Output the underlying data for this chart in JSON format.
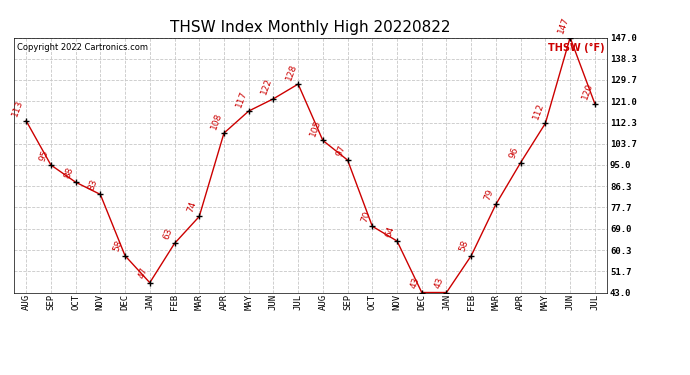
{
  "title": "THSW Index Monthly High 20220822",
  "copyright": "Copyright 2022 Cartronics.com",
  "legend_label": "THSW (°F)",
  "months": [
    "AUG",
    "SEP",
    "OCT",
    "NOV",
    "DEC",
    "JAN",
    "FEB",
    "MAR",
    "APR",
    "MAY",
    "JUN",
    "JUL",
    "AUG",
    "SEP",
    "OCT",
    "NOV",
    "DEC",
    "JAN",
    "FEB",
    "MAR",
    "APR",
    "MAY",
    "JUN",
    "JUL"
  ],
  "values": [
    113,
    95,
    88,
    83,
    58,
    47,
    63,
    74,
    108,
    117,
    122,
    128,
    105,
    97,
    70,
    64,
    43,
    43,
    58,
    79,
    96,
    112,
    147,
    120
  ],
  "line_color": "#cc0000",
  "marker_color": "#000000",
  "background_color": "#ffffff",
  "grid_color": "#c8c8c8",
  "ylim": [
    43.0,
    147.0
  ],
  "ytick_vals": [
    43.0,
    51.7,
    60.3,
    69.0,
    77.7,
    86.3,
    95.0,
    103.7,
    112.3,
    121.0,
    129.7,
    138.3,
    147.0
  ],
  "ytick_labels": [
    "43.0",
    "51.7",
    "60.3",
    "69.0",
    "77.7",
    "86.3",
    "95.0",
    "103.7",
    "112.3",
    "121.0",
    "129.7",
    "138.3",
    "147.0"
  ],
  "title_fontsize": 11,
  "xtick_fontsize": 6.5,
  "ytick_fontsize": 6.5,
  "annotation_fontsize": 6.5,
  "copyright_fontsize": 6,
  "legend_fontsize": 7
}
